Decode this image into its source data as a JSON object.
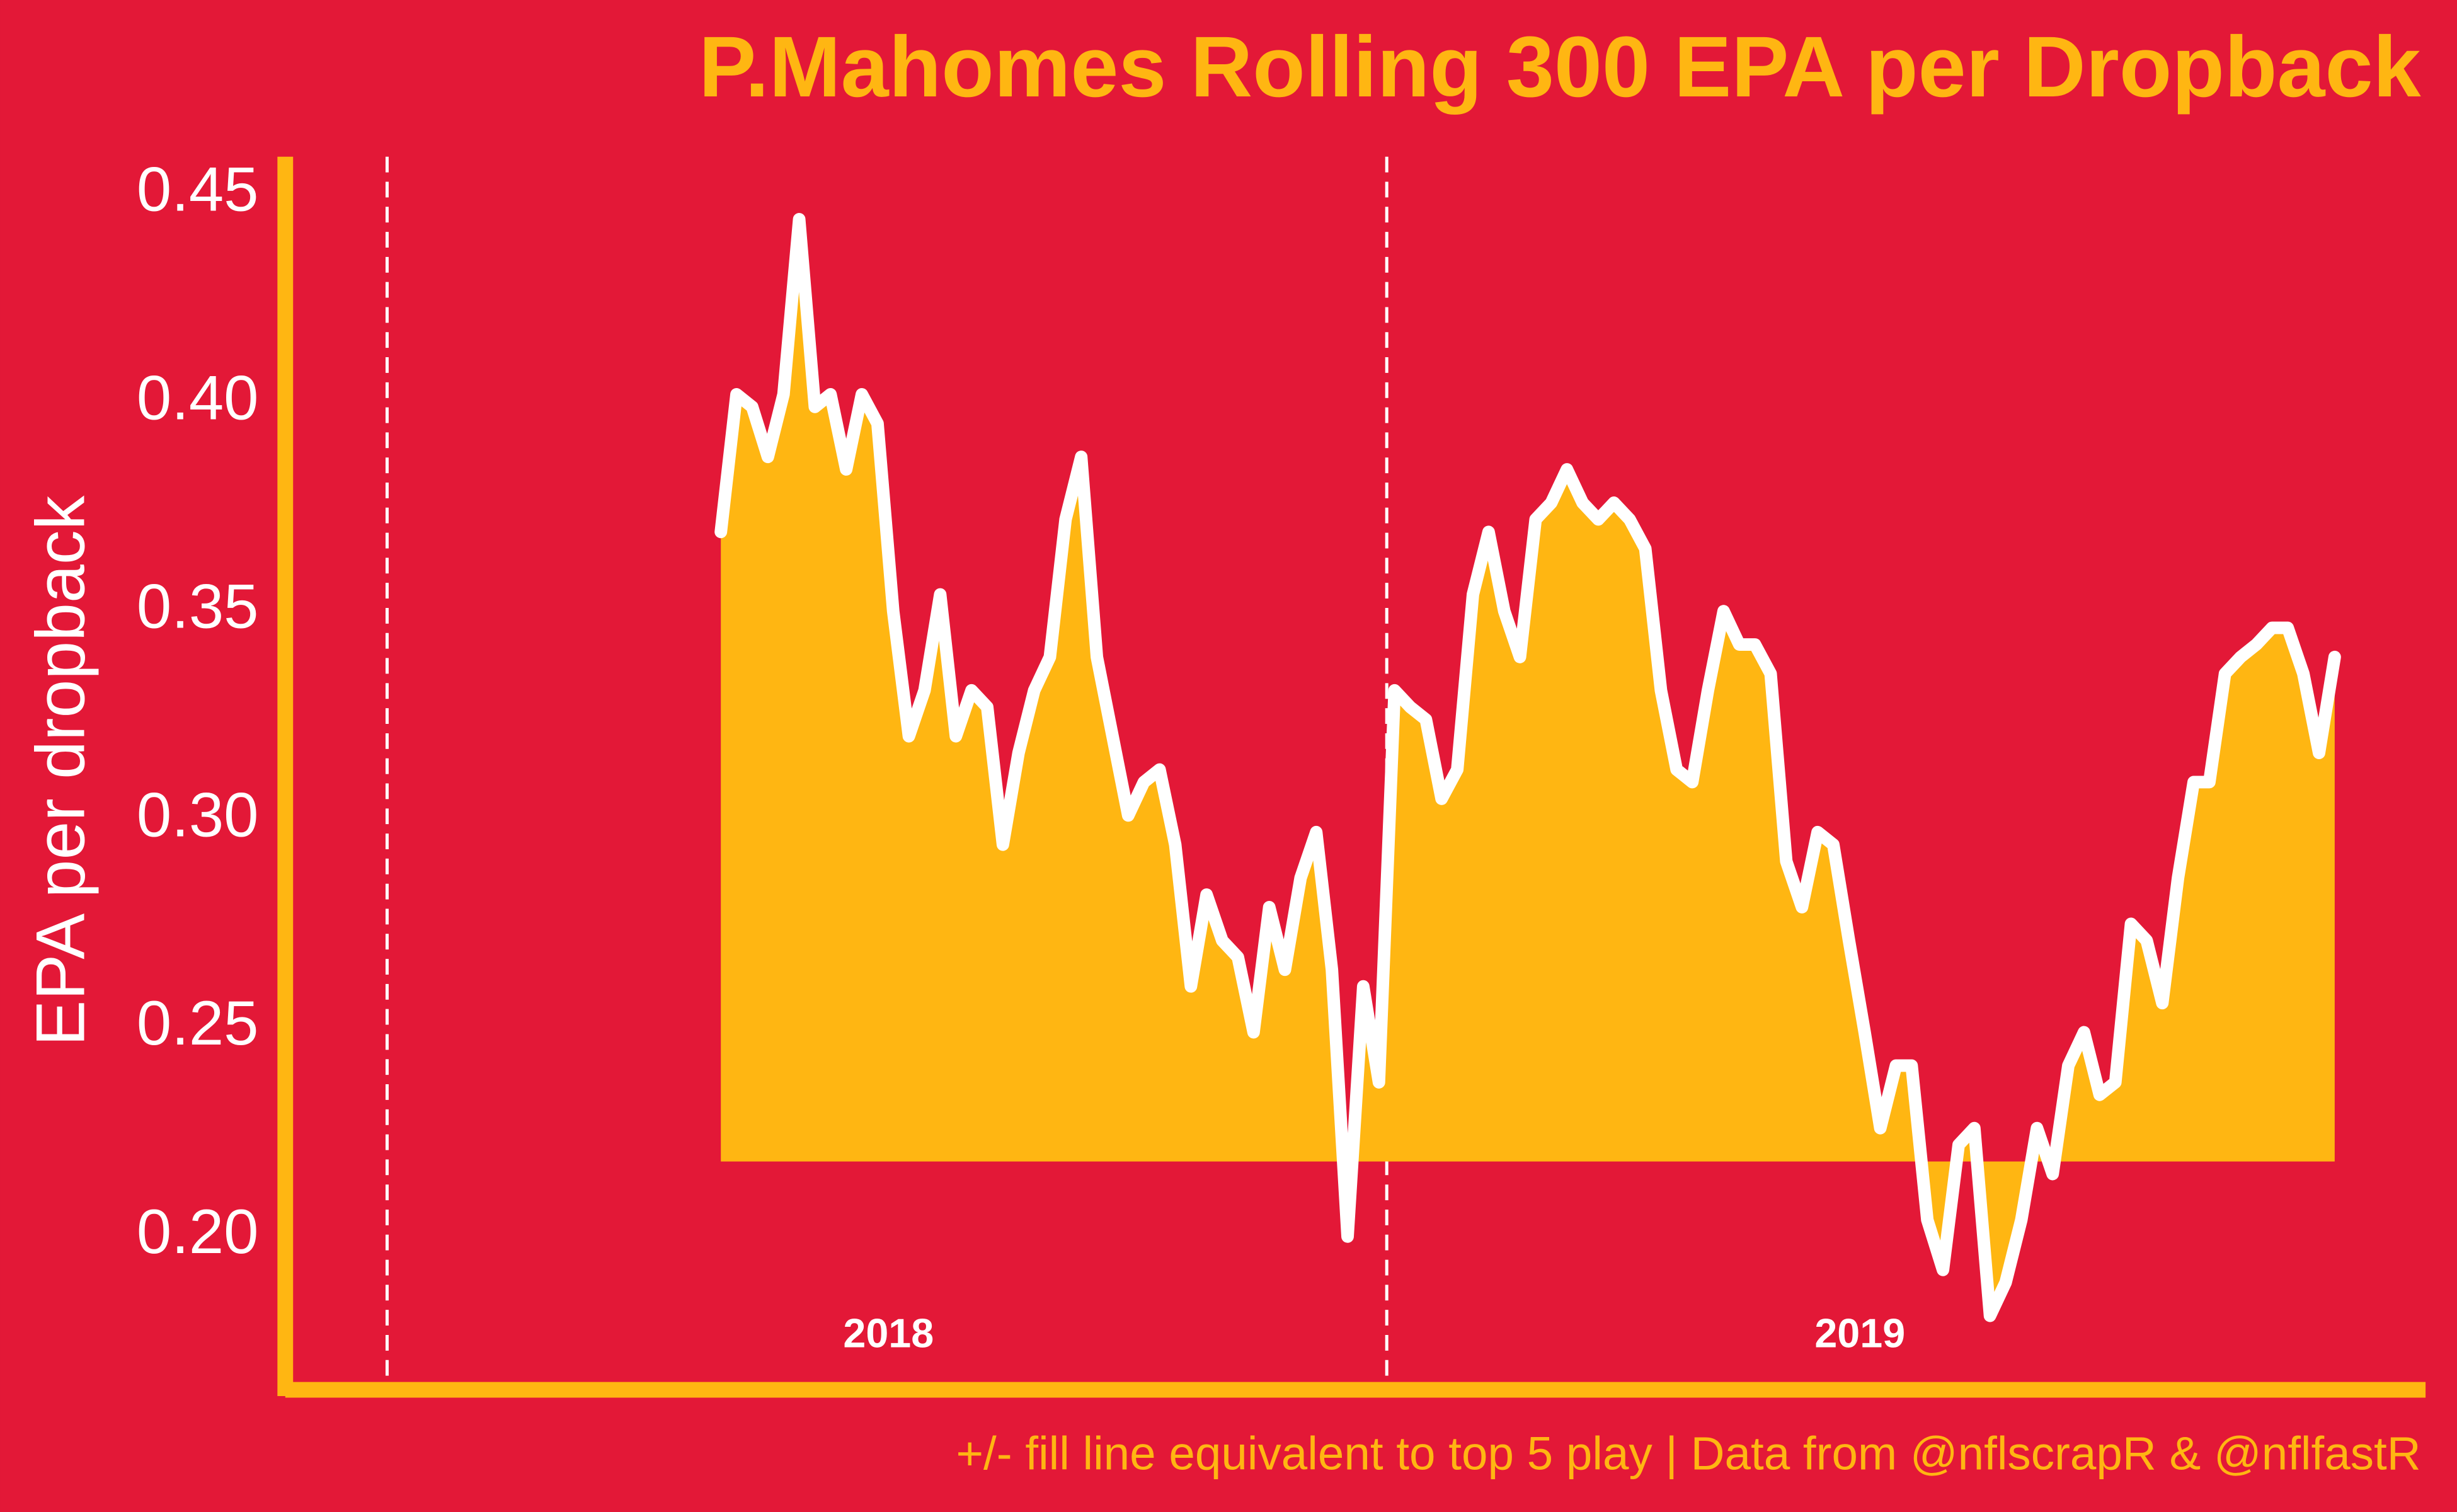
{
  "chart_data": {
    "type": "area",
    "title": "P.Mahomes Rolling 300 EPA per Dropback",
    "y_label": "EPA per dropback",
    "caption": "+/- fill line equivalent to top 5 play | Data from @nflscrapR & @nflfastR",
    "background": "#e31837",
    "accent_color": "#ffb612",
    "line_color": "#ffffff",
    "fill_baseline": 0.218,
    "xlim": [
      -27.5,
      108.8
    ],
    "ylim": [
      0.164,
      0.459
    ],
    "yticks": [
      {
        "value": 0.2,
        "label": "0.20"
      },
      {
        "value": 0.25,
        "label": "0.25"
      },
      {
        "value": 0.3,
        "label": "0.30"
      },
      {
        "value": 0.35,
        "label": "0.35"
      },
      {
        "value": 0.4,
        "label": "0.40"
      },
      {
        "value": 0.45,
        "label": "0.45"
      }
    ],
    "vlines": [
      -21.3,
      42.5
    ],
    "annotations": [
      {
        "text": "2018",
        "x": 10.7
      },
      {
        "text": "2019",
        "x": 72.7
      }
    ],
    "x": [
      0,
      1,
      2,
      3,
      4,
      5,
      6,
      7,
      8,
      9,
      10,
      11,
      12,
      13,
      14,
      15,
      16,
      17,
      18,
      19,
      20,
      21,
      22,
      23,
      24,
      25,
      26,
      27,
      28,
      29,
      30,
      31,
      32,
      33,
      34,
      35,
      36,
      37,
      38,
      39,
      40,
      41,
      42,
      43,
      44,
      45,
      46,
      47,
      48,
      49,
      50,
      51,
      52,
      53,
      54,
      55,
      56,
      57,
      58,
      59,
      60,
      61,
      62,
      63,
      64,
      65,
      66,
      67,
      68,
      69,
      70,
      71,
      72,
      73,
      74,
      75,
      76,
      77,
      78,
      79,
      80,
      81,
      82,
      83,
      84,
      85,
      86,
      87,
      88,
      89,
      90,
      91,
      92,
      93,
      94,
      95,
      96,
      97,
      98,
      99,
      100,
      101,
      102,
      103
    ],
    "values": [
      0.369,
      0.402,
      0.399,
      0.387,
      0.402,
      0.444,
      0.399,
      0.402,
      0.384,
      0.402,
      0.395,
      0.35,
      0.32,
      0.331,
      0.354,
      0.32,
      0.331,
      0.327,
      0.294,
      0.316,
      0.331,
      0.339,
      0.372,
      0.387,
      0.339,
      0.32,
      0.301,
      0.309,
      0.312,
      0.294,
      0.26,
      0.282,
      0.271,
      0.267,
      0.249,
      0.279,
      0.264,
      0.286,
      0.297,
      0.264,
      0.2,
      0.26,
      0.237,
      0.331,
      0.327,
      0.324,
      0.305,
      0.312,
      0.354,
      0.369,
      0.35,
      0.339,
      0.372,
      0.376,
      0.384,
      0.376,
      0.372,
      0.376,
      0.372,
      0.365,
      0.331,
      0.312,
      0.309,
      0.331,
      0.35,
      0.342,
      0.342,
      0.335,
      0.29,
      0.279,
      0.297,
      0.294,
      0.271,
      0.249,
      0.226,
      0.241,
      0.241,
      0.204,
      0.192,
      0.222,
      0.226,
      0.181,
      0.189,
      0.204,
      0.226,
      0.215,
      0.241,
      0.249,
      0.234,
      0.237,
      0.275,
      0.271,
      0.256,
      0.286,
      0.309,
      0.309,
      0.335,
      0.339,
      0.342,
      0.346,
      0.346,
      0.335,
      0.316,
      0.339
    ]
  }
}
